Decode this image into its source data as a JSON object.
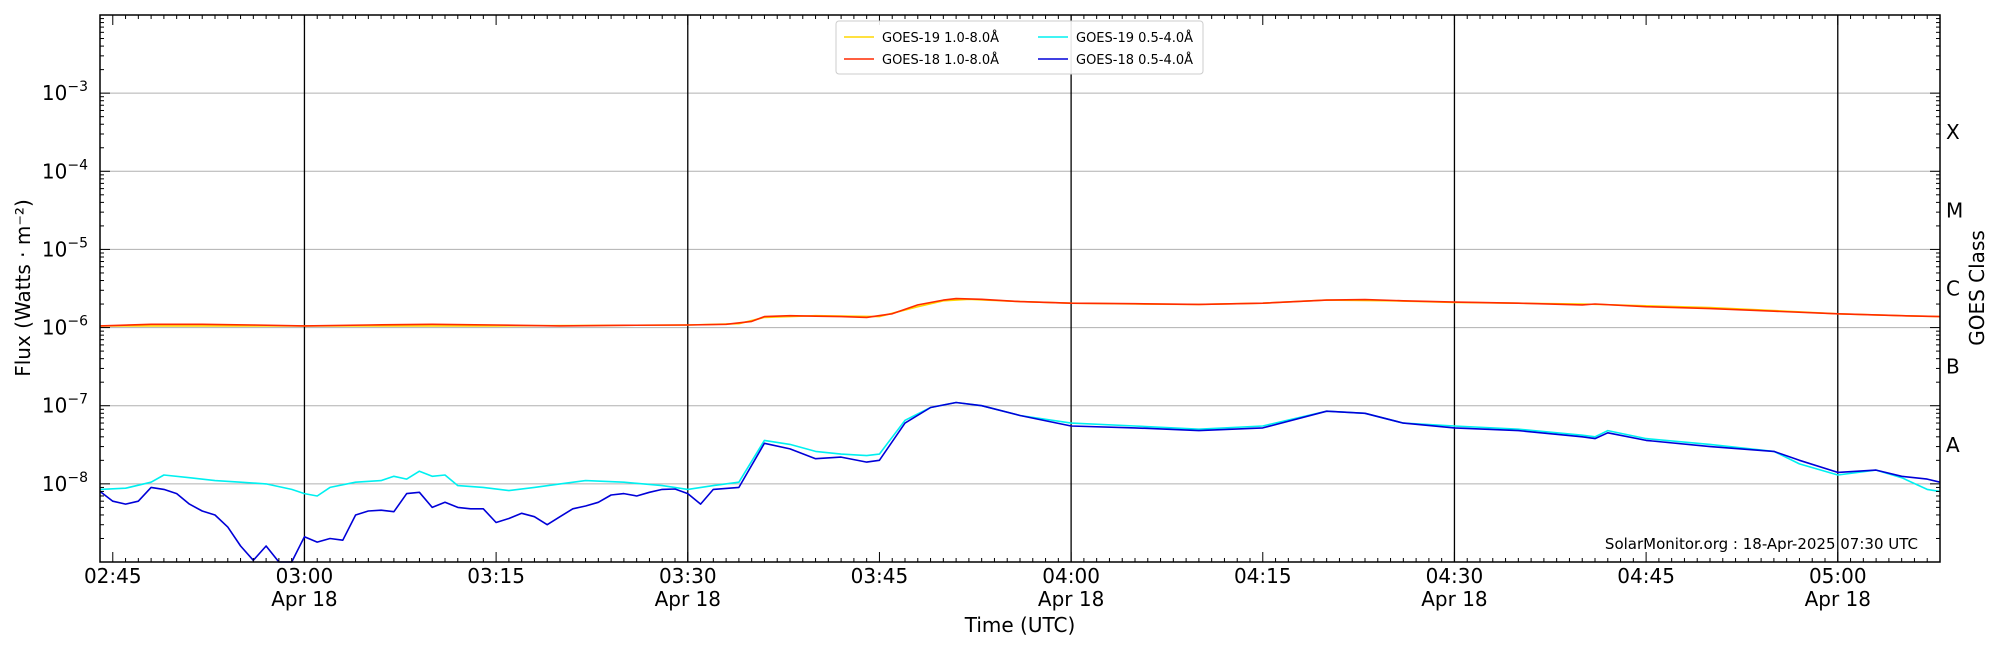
{
  "chart_data": {
    "type": "line",
    "title": "",
    "xlabel": "Time (UTC)",
    "ylabel": "Flux (Watts · m⁻²)",
    "right_axis_label": "GOES Class",
    "x_range": [
      "02:44",
      "05:08"
    ],
    "y_scale": "log",
    "ylim": [
      1e-09,
      0.01
    ],
    "grid": "horizontal-major-y",
    "legend_position": "top-center",
    "x_ticks": [
      {
        "time": "02:45",
        "line1": "02:45",
        "line2": ""
      },
      {
        "time": "03:00",
        "line1": "03:00",
        "line2": "Apr 18"
      },
      {
        "time": "03:15",
        "line1": "03:15",
        "line2": ""
      },
      {
        "time": "03:30",
        "line1": "03:30",
        "line2": "Apr 18"
      },
      {
        "time": "03:45",
        "line1": "03:45",
        "line2": ""
      },
      {
        "time": "04:00",
        "line1": "04:00",
        "line2": "Apr 18"
      },
      {
        "time": "04:15",
        "line1": "04:15",
        "line2": ""
      },
      {
        "time": "04:30",
        "line1": "04:30",
        "line2": "Apr 18"
      },
      {
        "time": "04:45",
        "line1": "04:45",
        "line2": ""
      },
      {
        "time": "05:00",
        "line1": "05:00",
        "line2": "Apr 18"
      }
    ],
    "vertical_markers": [
      "03:00",
      "03:30",
      "04:00",
      "04:30",
      "05:00"
    ],
    "y_ticks": [
      {
        "value": 1e-08,
        "base": "10",
        "exp": "−8"
      },
      {
        "value": 1e-07,
        "base": "10",
        "exp": "−7"
      },
      {
        "value": 1e-06,
        "base": "10",
        "exp": "−6"
      },
      {
        "value": 1e-05,
        "base": "10",
        "exp": "−5"
      },
      {
        "value": 0.0001,
        "base": "10",
        "exp": "−4"
      },
      {
        "value": 0.001,
        "base": "10",
        "exp": "−3"
      }
    ],
    "goes_classes": [
      {
        "label": "A",
        "value": 3.16e-08
      },
      {
        "label": "B",
        "value": 3.16e-07
      },
      {
        "label": "C",
        "value": 3.16e-06
      },
      {
        "label": "M",
        "value": 3.16e-05
      },
      {
        "label": "X",
        "value": 0.000316
      }
    ],
    "annotation": "SolarMonitor.org : 18-Apr-2025 07:30 UTC",
    "series": [
      {
        "name": "GOES-19 1.0-8.0Å",
        "color": "#ffd700",
        "x": [
          "02:44",
          "03:00",
          "03:15",
          "03:30",
          "03:34",
          "03:36",
          "03:40",
          "03:45",
          "03:48",
          "03:50",
          "03:52",
          "03:56",
          "04:00",
          "04:05",
          "04:10",
          "04:15",
          "04:20",
          "04:25",
          "04:30",
          "04:35",
          "04:40",
          "04:45",
          "04:50",
          "04:55",
          "05:00",
          "05:05",
          "05:08"
        ],
        "values": [
          1.05e-06,
          1.05e-06,
          1.05e-06,
          1.08e-06,
          1.12e-06,
          1.35e-06,
          1.42e-06,
          1.38e-06,
          1.85e-06,
          2.2e-06,
          2.3e-06,
          2.15e-06,
          2.05e-06,
          2e-06,
          1.98e-06,
          2.05e-06,
          2.25e-06,
          2.2e-06,
          2.1e-06,
          2.05e-06,
          2e-06,
          1.9e-06,
          1.8e-06,
          1.65e-06,
          1.5e-06,
          1.42e-06,
          1.38e-06
        ]
      },
      {
        "name": "GOES-18 1.0-8.0Å",
        "color": "#ff2a00",
        "x": [
          "02:44",
          "02:48",
          "02:52",
          "02:56",
          "03:00",
          "03:05",
          "03:10",
          "03:15",
          "03:20",
          "03:25",
          "03:30",
          "03:33",
          "03:35",
          "03:36",
          "03:38",
          "03:40",
          "03:42",
          "03:44",
          "03:46",
          "03:48",
          "03:50",
          "03:51",
          "03:53",
          "03:56",
          "04:00",
          "04:05",
          "04:10",
          "04:15",
          "04:20",
          "04:23",
          "04:26",
          "04:30",
          "04:35",
          "04:40",
          "04:41",
          "04:45",
          "04:50",
          "04:55",
          "05:00",
          "05:05",
          "05:08"
        ],
        "values": [
          1.05e-06,
          1.1e-06,
          1.1e-06,
          1.08e-06,
          1.05e-06,
          1.08e-06,
          1.1e-06,
          1.08e-06,
          1.05e-06,
          1.07e-06,
          1.08e-06,
          1.1e-06,
          1.2e-06,
          1.38e-06,
          1.42e-06,
          1.4e-06,
          1.38e-06,
          1.35e-06,
          1.5e-06,
          1.95e-06,
          2.25e-06,
          2.35e-06,
          2.3e-06,
          2.15e-06,
          2.05e-06,
          2.02e-06,
          1.98e-06,
          2.05e-06,
          2.25e-06,
          2.28e-06,
          2.2e-06,
          2.12e-06,
          2.05e-06,
          1.95e-06,
          2e-06,
          1.85e-06,
          1.75e-06,
          1.62e-06,
          1.5e-06,
          1.42e-06,
          1.38e-06
        ]
      },
      {
        "name": "GOES-19 0.5-4.0Å",
        "color": "#00f0f0",
        "x": [
          "02:44",
          "02:46",
          "02:48",
          "02:49",
          "02:51",
          "02:53",
          "02:55",
          "02:57",
          "02:59",
          "03:00",
          "03:01",
          "03:02",
          "03:04",
          "03:06",
          "03:07",
          "03:08",
          "03:09",
          "03:10",
          "03:11",
          "03:12",
          "03:14",
          "03:16",
          "03:18",
          "03:20",
          "03:22",
          "03:25",
          "03:28",
          "03:30",
          "03:32",
          "03:34",
          "03:36",
          "03:38",
          "03:40",
          "03:42",
          "03:44",
          "03:45",
          "03:47",
          "03:49",
          "03:51",
          "03:53",
          "03:56",
          "04:00",
          "04:05",
          "04:10",
          "04:15",
          "04:20",
          "04:23",
          "04:26",
          "04:30",
          "04:35",
          "04:40",
          "04:41",
          "04:42",
          "04:45",
          "04:50",
          "04:55",
          "04:57",
          "05:00",
          "05:03",
          "05:05",
          "05:07",
          "05:08"
        ],
        "values": [
          8.5e-09,
          8.8e-09,
          1.05e-08,
          1.3e-08,
          1.2e-08,
          1.1e-08,
          1.05e-08,
          1e-08,
          8.5e-09,
          7.5e-09,
          7e-09,
          9e-09,
          1.05e-08,
          1.1e-08,
          1.25e-08,
          1.15e-08,
          1.45e-08,
          1.25e-08,
          1.3e-08,
          9.5e-09,
          9e-09,
          8.2e-09,
          9e-09,
          1e-08,
          1.1e-08,
          1.05e-08,
          9.5e-09,
          8.5e-09,
          9.5e-09,
          1.05e-08,
          3.6e-08,
          3.2e-08,
          2.6e-08,
          2.4e-08,
          2.3e-08,
          2.4e-08,
          6.5e-08,
          9.5e-08,
          1.1e-07,
          1e-07,
          7.5e-08,
          6e-08,
          5.5e-08,
          5e-08,
          5.5e-08,
          8.5e-08,
          8e-08,
          6e-08,
          5.5e-08,
          5e-08,
          4.2e-08,
          4e-08,
          4.8e-08,
          3.8e-08,
          3.2e-08,
          2.6e-08,
          1.8e-08,
          1.3e-08,
          1.5e-08,
          1.2e-08,
          8.5e-09,
          8e-09
        ]
      },
      {
        "name": "GOES-18 0.5-4.0Å",
        "color": "#0000d8",
        "x": [
          "02:44",
          "02:45",
          "02:46",
          "02:47",
          "02:48",
          "02:49",
          "02:50",
          "02:51",
          "02:52",
          "02:53",
          "02:54",
          "02:55",
          "02:56",
          "02:57",
          "02:58",
          "02:59",
          "03:00",
          "03:01",
          "03:02",
          "03:03",
          "03:04",
          "03:05",
          "03:06",
          "03:07",
          "03:08",
          "03:09",
          "03:10",
          "03:11",
          "03:12",
          "03:13",
          "03:14",
          "03:15",
          "03:16",
          "03:17",
          "03:18",
          "03:19",
          "03:20",
          "03:21",
          "03:22",
          "03:23",
          "03:24",
          "03:25",
          "03:26",
          "03:27",
          "03:28",
          "03:29",
          "03:30",
          "03:31",
          "03:32",
          "03:34",
          "03:36",
          "03:38",
          "03:40",
          "03:42",
          "03:44",
          "03:45",
          "03:47",
          "03:49",
          "03:51",
          "03:53",
          "03:56",
          "04:00",
          "04:05",
          "04:10",
          "04:15",
          "04:20",
          "04:23",
          "04:26",
          "04:30",
          "04:35",
          "04:40",
          "04:41",
          "04:42",
          "04:45",
          "04:50",
          "04:55",
          "04:57",
          "05:00",
          "05:03",
          "05:05",
          "05:07",
          "05:08"
        ],
        "values": [
          8e-09,
          6e-09,
          5.5e-09,
          6e-09,
          9e-09,
          8.5e-09,
          7.5e-09,
          5.5e-09,
          4.5e-09,
          4e-09,
          2.8e-09,
          1.6e-09,
          1.05e-09,
          1.6e-09,
          1e-09,
          1e-09,
          2.1e-09,
          1.8e-09,
          2e-09,
          1.9e-09,
          4e-09,
          4.5e-09,
          4.6e-09,
          4.4e-09,
          7.5e-09,
          7.8e-09,
          5e-09,
          5.8e-09,
          5e-09,
          4.8e-09,
          4.8e-09,
          3.2e-09,
          3.6e-09,
          4.2e-09,
          3.8e-09,
          3e-09,
          3.8e-09,
          4.8e-09,
          5.2e-09,
          5.8e-09,
          7.2e-09,
          7.5e-09,
          7e-09,
          7.8e-09,
          8.5e-09,
          8.6e-09,
          7.5e-09,
          5.5e-09,
          8.5e-09,
          9e-09,
          3.3e-08,
          2.8e-08,
          2.1e-08,
          2.2e-08,
          1.9e-08,
          2e-08,
          6e-08,
          9.5e-08,
          1.1e-07,
          1e-07,
          7.5e-08,
          5.5e-08,
          5.2e-08,
          4.8e-08,
          5.2e-08,
          8.5e-08,
          8e-08,
          6e-08,
          5.2e-08,
          4.8e-08,
          4e-08,
          3.8e-08,
          4.5e-08,
          3.6e-08,
          3e-08,
          2.6e-08,
          2e-08,
          1.4e-08,
          1.5e-08,
          1.25e-08,
          1.15e-08,
          1.05e-08
        ]
      }
    ]
  }
}
